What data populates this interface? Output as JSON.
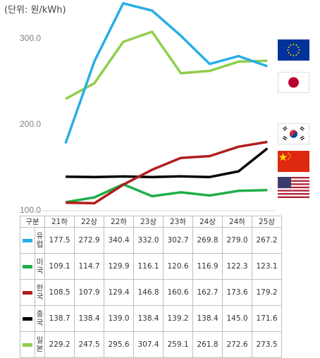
{
  "unit_label": "(단위: 원/kWh)",
  "table": {
    "corner_label": "구분",
    "periods": [
      "21하",
      "22상",
      "22하",
      "23상",
      "23하",
      "24상",
      "24하",
      "25상"
    ]
  },
  "colors": {
    "europe": "#29aee6",
    "usa": "#1fae4a",
    "korea": "#b01e1e",
    "china": "#000000",
    "japan": "#8fce4c"
  },
  "flags": [
    "eu-flag-icon",
    "japan-flag-icon",
    "korea-flag-icon",
    "china-flag-icon",
    "usa-flag-icon"
  ],
  "chart_data": {
    "type": "line",
    "x": [
      "21하",
      "22상",
      "22하",
      "23상",
      "23하",
      "24상",
      "24하",
      "25상"
    ],
    "ylim": [
      100,
      350
    ],
    "yticks": [
      "100.0",
      "200.0",
      "300.0"
    ],
    "ylabel": "(단위: 원/kWh)",
    "series": [
      {
        "name": "유럽",
        "key": "europe",
        "values": [
          177.5,
          272.9,
          340.4,
          332.0,
          302.7,
          269.8,
          279.0,
          267.2
        ]
      },
      {
        "name": "미국",
        "key": "usa",
        "values": [
          109.1,
          114.7,
          129.9,
          116.1,
          120.6,
          116.9,
          122.3,
          123.1
        ]
      },
      {
        "name": "한국",
        "key": "korea",
        "values": [
          108.5,
          107.9,
          129.4,
          146.8,
          160.6,
          162.7,
          173.6,
          179.2
        ]
      },
      {
        "name": "중국",
        "key": "china",
        "values": [
          138.7,
          138.4,
          139.0,
          138.4,
          139.2,
          138.4,
          145.0,
          171.6
        ]
      },
      {
        "name": "일본",
        "key": "japan",
        "values": [
          229.2,
          247.5,
          295.6,
          307.4,
          259.1,
          261.8,
          272.6,
          273.5
        ]
      }
    ]
  }
}
